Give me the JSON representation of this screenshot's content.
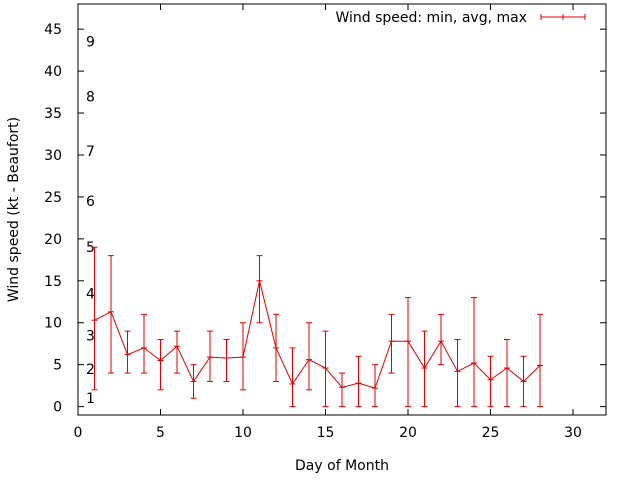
{
  "chart_data": {
    "type": "line",
    "title": "",
    "xlabel": "Day of Month",
    "ylabel": "Wind speed (kt - Beaufort)",
    "xlim": [
      0,
      32
    ],
    "ylim": [
      -1,
      48
    ],
    "x_ticks": [
      0,
      5,
      10,
      15,
      20,
      25,
      30
    ],
    "y_ticks": [
      0,
      5,
      10,
      15,
      20,
      25,
      30,
      35,
      40,
      45
    ],
    "grid": false,
    "legend_position": "top-right",
    "series_color": "#e00000",
    "series": [
      {
        "name": "Wind speed: min, avg, max",
        "x": [
          1,
          2,
          3,
          4,
          5,
          6,
          7,
          8,
          9,
          10,
          11,
          12,
          13,
          14,
          15,
          16,
          17,
          18,
          19,
          20,
          21,
          22,
          23,
          24,
          25,
          26,
          27,
          28
        ],
        "avg": [
          10.3,
          11.3,
          6.2,
          7.0,
          5.5,
          7.2,
          3.0,
          5.9,
          5.8,
          5.9,
          15.0,
          7.0,
          2.7,
          5.6,
          4.6,
          2.3,
          2.8,
          2.2,
          7.8,
          7.8,
          4.6,
          7.8,
          4.2,
          5.2,
          3.2,
          4.6,
          3.0,
          4.9
        ],
        "min": [
          2,
          4,
          4,
          4,
          2,
          4,
          1,
          3,
          3,
          2,
          10,
          3,
          0,
          2,
          0,
          0,
          0,
          0,
          4,
          0,
          0,
          5,
          0,
          0,
          0,
          0,
          0,
          0
        ],
        "max": [
          19,
          18,
          9,
          11,
          8,
          9,
          5,
          9,
          8,
          10,
          18,
          11,
          7,
          10,
          9,
          4,
          6,
          5,
          11,
          13,
          9,
          11,
          8,
          13,
          6,
          8,
          6,
          11
        ]
      }
    ],
    "beaufort_labels": [
      {
        "label": "1",
        "kt": 1
      },
      {
        "label": "2",
        "kt": 4.5
      },
      {
        "label": "3",
        "kt": 8.5
      },
      {
        "label": "4",
        "kt": 13.5
      },
      {
        "label": "5",
        "kt": 19
      },
      {
        "label": "6",
        "kt": 24.5
      },
      {
        "label": "7",
        "kt": 30.5
      },
      {
        "label": "8",
        "kt": 37
      },
      {
        "label": "9",
        "kt": 43.5
      }
    ]
  }
}
